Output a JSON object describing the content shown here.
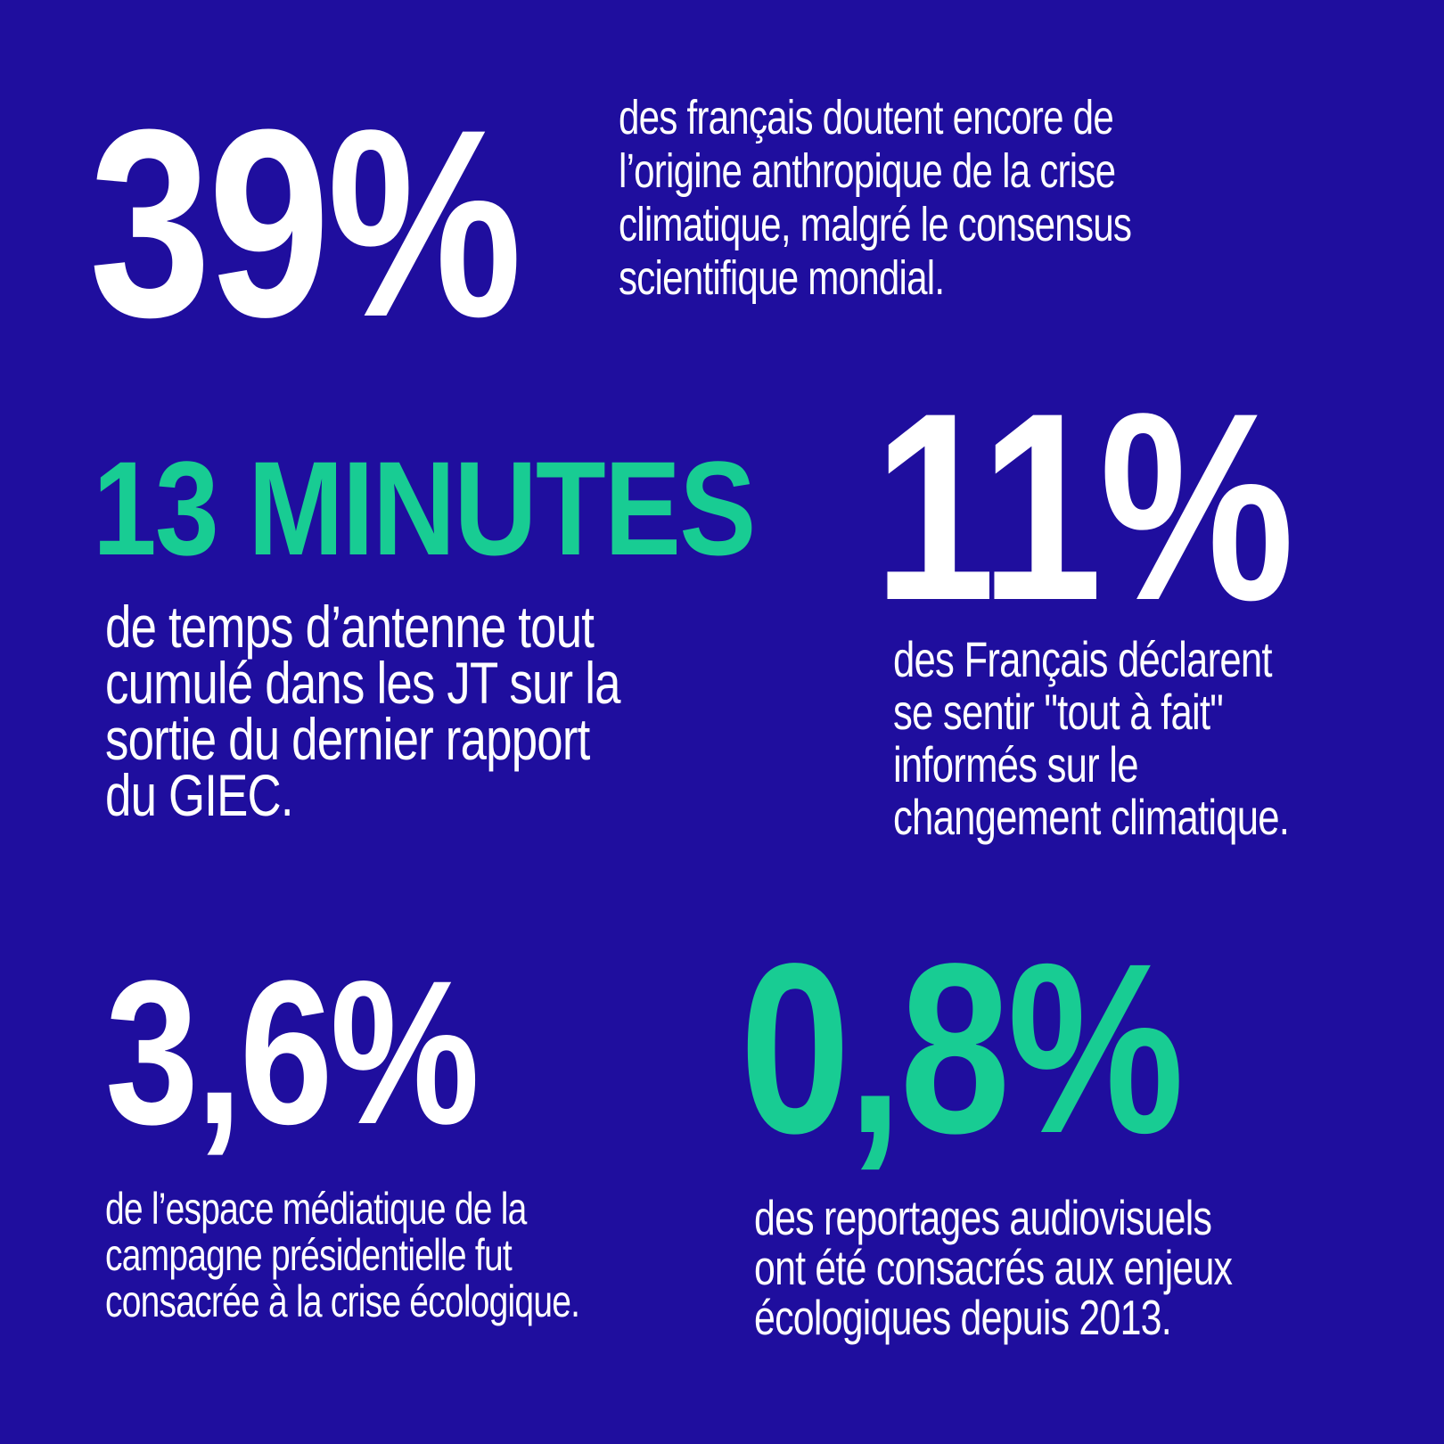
{
  "colors": {
    "background": "#1f0e9e",
    "accent": "#18cc93",
    "text": "#ffffff"
  },
  "stats": {
    "s1": {
      "value": "39%",
      "lines": [
        "des français doutent encore de",
        "l’origine anthropique de la crise",
        "climatique, malgré le consensus",
        "scientifique mondial."
      ]
    },
    "s2": {
      "value": "13 MINUTES",
      "lines": [
        "de temps d’antenne tout",
        "cumulé dans les JT sur la",
        "sortie du dernier rapport",
        "du GIEC."
      ]
    },
    "s3": {
      "value": "11%",
      "lines": [
        "des Français déclarent",
        "se sentir \"tout à fait\"",
        "informés sur le",
        "changement climatique."
      ]
    },
    "s4": {
      "value": "3,6%",
      "lines": [
        "de l’espace médiatique de la",
        "campagne présidentielle fut",
        "consacrée à la crise écologique."
      ]
    },
    "s5": {
      "value": "0,8%",
      "lines": [
        "des reportages audiovisuels",
        "ont été consacrés aux enjeux",
        "écologiques depuis 2013."
      ]
    }
  }
}
